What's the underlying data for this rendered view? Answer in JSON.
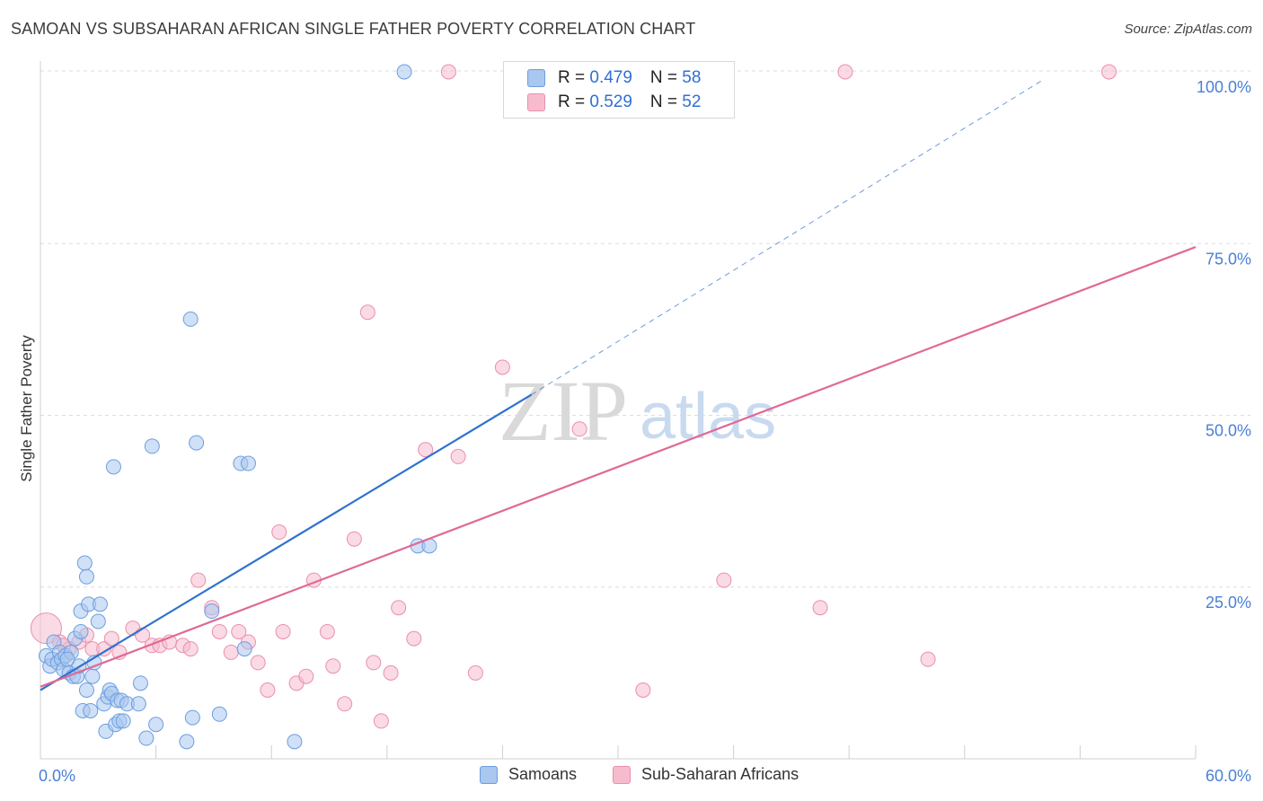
{
  "title": "SAMOAN VS SUBSAHARAN AFRICAN SINGLE FATHER POVERTY CORRELATION CHART",
  "source": "Source: ZipAtlas.com",
  "watermark": {
    "zip": "ZIP",
    "atlas": "atlas"
  },
  "legend": {
    "samoans": {
      "r_label": "R = ",
      "r_value": "0.479",
      "n_label": "N = ",
      "n_value": "58"
    },
    "subsaharan": {
      "r_label": "R = ",
      "r_value": "0.529",
      "n_label": "N = ",
      "n_value": "52"
    }
  },
  "bottom_legend": {
    "samoans": "Samoans",
    "subsaharan": "Sub-Saharan Africans"
  },
  "colors": {
    "blue_fill": "#a9c7ef",
    "blue_stroke": "#6b9edf",
    "blue_line": "#2f72d0",
    "pink_fill": "#f6bccd",
    "pink_stroke": "#ea8fac",
    "pink_line": "#e06996",
    "grid": "#dddddd",
    "tick_text": "#4a7fd6"
  },
  "chart_data": {
    "type": "scatter",
    "title": "SAMOAN VS SUBSAHARAN AFRICAN SINGLE FATHER POVERTY CORRELATION CHART",
    "xlabel": "",
    "ylabel": "Single Father Poverty",
    "xlim": [
      0,
      60
    ],
    "ylim": [
      0,
      100
    ],
    "x_tick_labels": [
      "0.0%",
      "60.0%"
    ],
    "y_ticks": [
      25,
      50,
      75,
      100
    ],
    "y_tick_labels": [
      "25.0%",
      "50.0%",
      "75.0%",
      "100.0%"
    ],
    "grid": true,
    "legend_position": "top-center",
    "series": [
      {
        "name": "Samoans",
        "color": "blue",
        "R": 0.479,
        "N": 58,
        "trend": {
          "x": [
            0,
            25.5
          ],
          "y": [
            10.0,
            53.0
          ],
          "dashed_to": [
            52,
            98.7
          ]
        },
        "points": [
          [
            0.3,
            15.0
          ],
          [
            0.5,
            13.5
          ],
          [
            0.6,
            14.5
          ],
          [
            0.7,
            17.0
          ],
          [
            0.9,
            14.0
          ],
          [
            1.0,
            15.5
          ],
          [
            1.1,
            14.5
          ],
          [
            1.2,
            13.0
          ],
          [
            1.3,
            15.0
          ],
          [
            1.5,
            12.5
          ],
          [
            1.6,
            15.5
          ],
          [
            1.7,
            12.0
          ],
          [
            1.8,
            17.5
          ],
          [
            1.9,
            12.0
          ],
          [
            2.0,
            13.5
          ],
          [
            2.1,
            18.5
          ],
          [
            2.1,
            21.5
          ],
          [
            2.2,
            7.0
          ],
          [
            2.3,
            28.5
          ],
          [
            2.4,
            26.5
          ],
          [
            2.4,
            10.0
          ],
          [
            2.5,
            22.5
          ],
          [
            2.6,
            7.0
          ],
          [
            2.7,
            12.0
          ],
          [
            2.8,
            14.0
          ],
          [
            3.0,
            20.0
          ],
          [
            3.1,
            22.5
          ],
          [
            3.3,
            8.0
          ],
          [
            3.4,
            4.0
          ],
          [
            3.5,
            9.0
          ],
          [
            3.6,
            10.0
          ],
          [
            3.7,
            9.5
          ],
          [
            3.8,
            42.5
          ],
          [
            3.9,
            5.0
          ],
          [
            4.0,
            8.5
          ],
          [
            4.1,
            5.5
          ],
          [
            4.2,
            8.5
          ],
          [
            4.3,
            5.5
          ],
          [
            4.5,
            8.0
          ],
          [
            5.1,
            8.0
          ],
          [
            5.2,
            11.0
          ],
          [
            5.5,
            3.0
          ],
          [
            5.8,
            45.5
          ],
          [
            6.0,
            5.0
          ],
          [
            7.6,
            2.5
          ],
          [
            7.8,
            64.0
          ],
          [
            7.9,
            6.0
          ],
          [
            8.1,
            46.0
          ],
          [
            8.9,
            21.5
          ],
          [
            9.3,
            6.5
          ],
          [
            10.4,
            43.0
          ],
          [
            10.6,
            16.0
          ],
          [
            10.8,
            43.0
          ],
          [
            13.2,
            2.5
          ],
          [
            18.9,
            100.0
          ],
          [
            19.6,
            31.0
          ],
          [
            20.2,
            31.0
          ],
          [
            1.4,
            14.5
          ]
        ]
      },
      {
        "name": "Sub-Saharan Africans",
        "color": "pink",
        "R": 0.529,
        "N": 52,
        "trend": {
          "x": [
            0,
            60
          ],
          "y": [
            10.5,
            74.5
          ]
        },
        "points": [
          [
            0.3,
            19.0
          ],
          [
            1.0,
            17.0
          ],
          [
            1.5,
            16.0
          ],
          [
            2.0,
            17.0
          ],
          [
            2.4,
            18.0
          ],
          [
            2.7,
            16.0
          ],
          [
            3.3,
            16.0
          ],
          [
            3.7,
            17.5
          ],
          [
            4.1,
            15.5
          ],
          [
            4.8,
            19.0
          ],
          [
            5.3,
            18.0
          ],
          [
            5.8,
            16.5
          ],
          [
            6.2,
            16.5
          ],
          [
            6.7,
            17.0
          ],
          [
            7.4,
            16.5
          ],
          [
            7.8,
            16.0
          ],
          [
            8.2,
            26.0
          ],
          [
            8.9,
            22.0
          ],
          [
            9.3,
            18.5
          ],
          [
            9.9,
            15.5
          ],
          [
            10.3,
            18.5
          ],
          [
            10.8,
            17.0
          ],
          [
            11.3,
            14.0
          ],
          [
            11.8,
            10.0
          ],
          [
            12.4,
            33.0
          ],
          [
            12.6,
            18.5
          ],
          [
            13.3,
            11.0
          ],
          [
            13.8,
            12.0
          ],
          [
            14.2,
            26.0
          ],
          [
            14.9,
            18.5
          ],
          [
            15.2,
            13.5
          ],
          [
            15.8,
            8.0
          ],
          [
            16.3,
            32.0
          ],
          [
            17.0,
            65.0
          ],
          [
            17.3,
            14.0
          ],
          [
            17.7,
            5.5
          ],
          [
            18.2,
            12.5
          ],
          [
            18.6,
            22.0
          ],
          [
            19.4,
            17.5
          ],
          [
            20.0,
            45.0
          ],
          [
            21.7,
            44.0
          ],
          [
            22.6,
            12.5
          ],
          [
            24.0,
            57.0
          ],
          [
            28.0,
            48.0
          ],
          [
            31.3,
            10.0
          ],
          [
            35.5,
            26.0
          ],
          [
            40.5,
            22.0
          ],
          [
            41.8,
            100.0
          ],
          [
            46.1,
            14.5
          ],
          [
            55.5,
            100.0
          ],
          [
            21.2,
            100.0
          ],
          [
            1.2,
            16.5
          ]
        ]
      }
    ]
  }
}
